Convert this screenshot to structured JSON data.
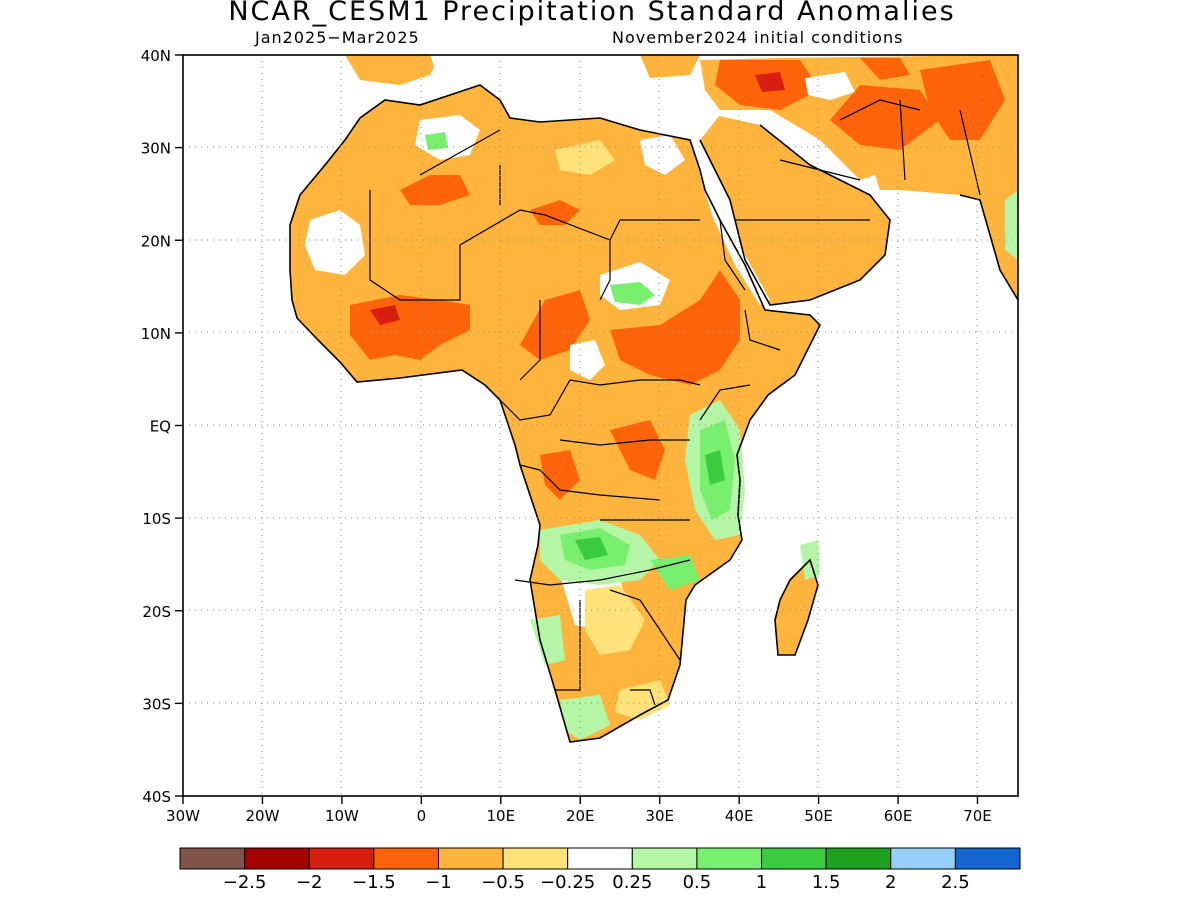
{
  "title": "NCAR_CESM1 Precipitation Standard Anomalies",
  "period": "Jan2025−Mar2025",
  "init": "November2024 initial conditions",
  "lat_labels": [
    "40N",
    "30N",
    "20N",
    "10N",
    "EQ",
    "10S",
    "20S",
    "30S",
    "40S"
  ],
  "lon_labels": [
    "30W",
    "20W",
    "10W",
    "0",
    "10E",
    "20E",
    "30E",
    "40E",
    "50E",
    "60E",
    "70E"
  ],
  "colorbar": {
    "colors": [
      "#7f5449",
      "#a50000",
      "#d81e0e",
      "#ff640a",
      "#ffb53d",
      "#ffe37a",
      "#ffffff",
      "#b5f5a6",
      "#79ef6f",
      "#3acb3e",
      "#1ea11e",
      "#96d0f9",
      "#1565d0"
    ],
    "labels": [
      "−2.5",
      "−2",
      "−1.5",
      "−1",
      "−0.5",
      "−0.25",
      "0.25",
      "0.5",
      "1",
      "1.5",
      "2",
      "2.5"
    ]
  },
  "legend_colors": {
    "anomaly_dry_moderate": "#ffb53d",
    "anomaly_dry_strong": "#ff640a",
    "anomaly_wet": "#79ef6f",
    "anomaly_wet_strong": "#3acb3e"
  }
}
